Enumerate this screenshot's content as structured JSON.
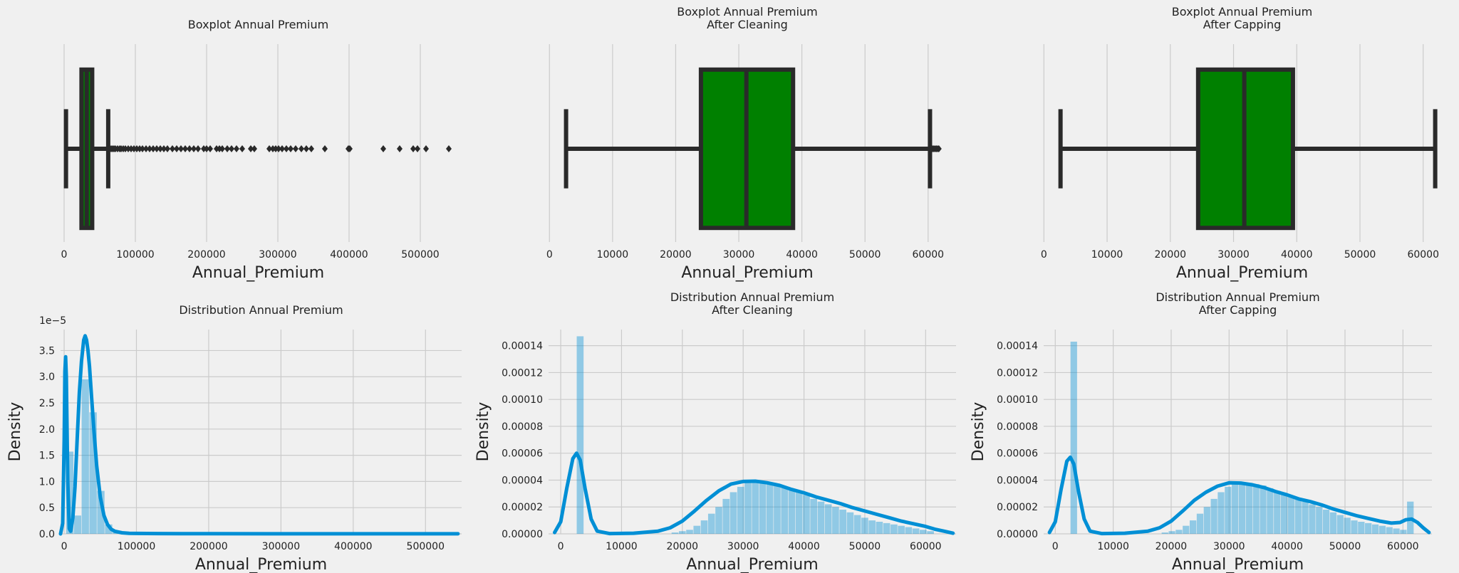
{
  "chart_data": [
    {
      "type": "boxplot",
      "title": "Boxplot Annual Premium",
      "xlabel": "Annual_Premium",
      "xlim": [
        -5000,
        550000
      ],
      "xticks": [
        0,
        100000,
        200000,
        300000,
        400000,
        500000
      ],
      "grid": "vertical",
      "color": "#008000",
      "box": {
        "whisker_low": 2630,
        "q1": 24400,
        "median": 31700,
        "q3": 39400,
        "whisker_high": 61900
      },
      "outliers": [
        62000,
        64000,
        66000,
        68000,
        70000,
        72000,
        75000,
        78000,
        80000,
        83000,
        86000,
        90000,
        94000,
        98000,
        102000,
        106000,
        110000,
        115000,
        120000,
        125000,
        130000,
        135000,
        140000,
        145000,
        152000,
        158000,
        164000,
        170000,
        176000,
        182000,
        188000,
        196000,
        200000,
        205000,
        214000,
        218000,
        222000,
        229000,
        235000,
        242000,
        250000,
        262000,
        267000,
        288000,
        293000,
        297000,
        301000,
        306000,
        312000,
        318000,
        325000,
        333000,
        340000,
        347000,
        366000,
        399000,
        401000,
        448000,
        471000,
        490000,
        496000,
        508000,
        540000
      ]
    },
    {
      "type": "boxplot",
      "title": "Boxplot Annual Premium\nAfter Cleaning",
      "xlabel": "Annual_Premium",
      "xlim": [
        -1500,
        64200
      ],
      "xticks": [
        0,
        10000,
        20000,
        30000,
        40000,
        50000,
        60000
      ],
      "grid": "vertical",
      "color": "#008000",
      "box": {
        "whisker_low": 2630,
        "q1": 24000,
        "median": 31200,
        "q3": 38600,
        "whisker_high": 60300
      },
      "outliers": [
        60500,
        60700,
        60900,
        61100,
        61300,
        61500,
        61700
      ]
    },
    {
      "type": "boxplot",
      "title": "Boxplot Annual Premium\nAfter Capping",
      "xlabel": "Annual_Premium",
      "xlim": [
        -1500,
        64200
      ],
      "xticks": [
        0,
        10000,
        20000,
        30000,
        40000,
        50000,
        60000
      ],
      "grid": "vertical",
      "color": "#008000",
      "box": {
        "whisker_low": 2630,
        "q1": 24400,
        "median": 31700,
        "q3": 39400,
        "whisker_high": 61900
      },
      "outliers": []
    },
    {
      "type": "histogram+kde",
      "title": "Distribution Annual Premium",
      "xlabel": "Annual_Premium",
      "ylabel": "Density",
      "xlim": [
        -5000,
        550000
      ],
      "ylim": [
        0,
        3.9e-05
      ],
      "xticks": [
        0,
        100000,
        200000,
        300000,
        400000,
        500000
      ],
      "yticks": [
        0,
        5e-06,
        1e-05,
        1.5e-05,
        2e-05,
        2.5e-05,
        3e-05,
        3.5e-05
      ],
      "ytick_labels": [
        "0.0",
        "0.5",
        "1.0",
        "1.5",
        "2.0",
        "2.5",
        "3.0",
        "3.5"
      ],
      "offset_text": "1e−5",
      "grid": "both",
      "color": "#008fd5",
      "bins": {
        "start": 2630,
        "width": 10763,
        "heights": [
          1.57e-05,
          3.5e-06,
          2.95e-05,
          2.32e-05,
          8.2e-06,
          1.8e-06,
          5e-07,
          2e-07,
          1e-07,
          5e-08,
          3e-08,
          2e-08,
          2e-08,
          1e-08,
          1e-08,
          1e-08,
          1e-08,
          1e-08,
          1e-08,
          1e-08,
          1e-08,
          1e-08,
          1e-08,
          1e-08,
          1e-08,
          1e-08,
          1e-08,
          1e-08,
          1e-08,
          1e-08,
          1e-08,
          1e-08,
          1e-08,
          1e-08,
          1e-08,
          1e-08,
          1e-08,
          1e-08,
          1e-08,
          1e-08,
          1e-08,
          1e-08,
          1e-08,
          1e-08,
          1e-08,
          1e-08,
          1e-08,
          1e-08,
          1e-08,
          1e-08
        ]
      },
      "kde": {
        "x": [
          -5000,
          -2000,
          0,
          1000,
          2000,
          3000,
          4000,
          5000,
          7000,
          9000,
          12000,
          15000,
          18000,
          21000,
          24000,
          27000,
          29000,
          31000,
          33000,
          35000,
          38000,
          41000,
          45000,
          50000,
          55000,
          60000,
          65000,
          70000,
          80000,
          90000,
          100000,
          130000,
          200000,
          300000,
          400000,
          545000
        ],
        "y": [
          0,
          2e-06,
          1.8e-05,
          3.1e-05,
          3.38e-05,
          3e-05,
          2e-05,
          1e-05,
          1e-06,
          5e-07,
          3e-06,
          9e-06,
          1.8e-05,
          2.7e-05,
          3.3e-05,
          3.7e-05,
          3.78e-05,
          3.7e-05,
          3.5e-05,
          3.2e-05,
          2.6e-05,
          2e-05,
          1.3e-05,
          7e-06,
          3.5e-06,
          1.8e-06,
          9e-07,
          5e-07,
          2e-07,
          1e-07,
          8e-08,
          5e-08,
          3e-08,
          2e-08,
          1e-08,
          1e-08
        ]
      }
    },
    {
      "type": "histogram+kde",
      "title": "Distribution Annual Premium\nAfter Cleaning",
      "xlabel": "Annual_Premium",
      "ylabel": "Density",
      "xlim": [
        -2000,
        65000
      ],
      "ylim": [
        0,
        0.000152
      ],
      "xticks": [
        0,
        10000,
        20000,
        30000,
        40000,
        50000,
        60000
      ],
      "yticks": [
        0,
        2e-05,
        4e-05,
        6e-05,
        8e-05,
        0.0001,
        0.00012,
        0.00014
      ],
      "ytick_labels": [
        "0.00000",
        "0.00002",
        "0.00004",
        "0.00006",
        "0.00008",
        "0.00010",
        "0.00012",
        "0.00014"
      ],
      "grid": "both",
      "color": "#008fd5",
      "bins": {
        "start": 2630,
        "width": 1200,
        "heights": [
          0.000147,
          0,
          0,
          0,
          0,
          0,
          0,
          0,
          0,
          0,
          0,
          0,
          0,
          1e-06,
          2e-06,
          3e-06,
          6e-06,
          1e-05,
          1.5e-05,
          2e-05,
          2.6e-05,
          3.1e-05,
          3.5e-05,
          3.8e-05,
          3.9e-05,
          3.9e-05,
          3.8e-05,
          3.7e-05,
          3.5e-05,
          3.3e-05,
          3.1e-05,
          2.9e-05,
          2.6e-05,
          2.4e-05,
          2.2e-05,
          2e-05,
          1.8e-05,
          1.6e-05,
          1.4e-05,
          1.2e-05,
          1e-05,
          9e-06,
          8e-06,
          7e-06,
          6e-06,
          5e-06,
          4e-06,
          3e-06,
          2e-06
        ]
      },
      "kde": {
        "x": [
          -1000,
          0,
          1000,
          2000,
          2600,
          3200,
          4000,
          5000,
          6000,
          8000,
          12000,
          16000,
          18000,
          20000,
          22000,
          24000,
          26000,
          28000,
          30000,
          32000,
          34000,
          36000,
          38000,
          40000,
          42000,
          44000,
          46000,
          48000,
          50000,
          52000,
          54000,
          56000,
          58000,
          60000,
          61500,
          63000,
          64500
        ],
        "y": [
          1e-06,
          9e-06,
          3.4e-05,
          5.6e-05,
          6e-05,
          5.5e-05,
          3.4e-05,
          1.1e-05,
          2e-06,
          2e-07,
          5e-07,
          2e-06,
          4.5e-06,
          9.5e-06,
          1.7e-05,
          2.5e-05,
          3.2e-05,
          3.7e-05,
          3.9e-05,
          3.92e-05,
          3.8e-05,
          3.6e-05,
          3.3e-05,
          3.05e-05,
          2.75e-05,
          2.5e-05,
          2.25e-05,
          1.95e-05,
          1.7e-05,
          1.45e-05,
          1.2e-05,
          9.5e-06,
          7.5e-06,
          5.5e-06,
          3.5e-06,
          2e-06,
          5e-07
        ]
      }
    },
    {
      "type": "histogram+kde",
      "title": "Distribution Annual Premium\nAfter Capping",
      "xlabel": "Annual_Premium",
      "ylabel": "Density",
      "xlim": [
        -2000,
        65000
      ],
      "ylim": [
        0,
        0.000152
      ],
      "xticks": [
        0,
        10000,
        20000,
        30000,
        40000,
        50000,
        60000
      ],
      "yticks": [
        0,
        2e-05,
        4e-05,
        6e-05,
        8e-05,
        0.0001,
        0.00012,
        0.00014
      ],
      "ytick_labels": [
        "0.00000",
        "0.00002",
        "0.00004",
        "0.00006",
        "0.00008",
        "0.00010",
        "0.00012",
        "0.00014"
      ],
      "grid": "both",
      "color": "#008fd5",
      "bins": {
        "start": 2630,
        "width": 1210,
        "heights": [
          0.000143,
          0,
          0,
          0,
          0,
          0,
          0,
          0,
          0,
          0,
          0,
          0,
          0,
          1e-06,
          2e-06,
          3e-06,
          6e-06,
          1e-05,
          1.5e-05,
          2e-05,
          2.6e-05,
          3.1e-05,
          3.5e-05,
          3.7e-05,
          3.8e-05,
          3.8e-05,
          3.7e-05,
          3.6e-05,
          3.4e-05,
          3.2e-05,
          3e-05,
          2.8e-05,
          2.6e-05,
          2.4e-05,
          2.2e-05,
          2e-05,
          1.8e-05,
          1.6e-05,
          1.4e-05,
          1.2e-05,
          1e-05,
          9e-06,
          8e-06,
          7e-06,
          6e-06,
          5e-06,
          4e-06,
          3e-06,
          2.4e-05
        ]
      },
      "kde": {
        "x": [
          -1000,
          0,
          1000,
          2000,
          2600,
          3200,
          4000,
          5000,
          6000,
          8000,
          12000,
          16000,
          18000,
          20000,
          22000,
          24000,
          26000,
          28000,
          30000,
          32000,
          34000,
          36000,
          38000,
          40000,
          42000,
          44000,
          46000,
          48000,
          50000,
          52000,
          54000,
          56000,
          58000,
          59500,
          60500,
          61500,
          62500,
          63500,
          64500
        ],
        "y": [
          1e-06,
          9e-06,
          3.3e-05,
          5.4e-05,
          5.7e-05,
          5.2e-05,
          3.2e-05,
          1.1e-05,
          2e-06,
          2e-07,
          5e-07,
          2e-06,
          4.5e-06,
          9.5e-06,
          1.7e-05,
          2.5e-05,
          3.1e-05,
          3.55e-05,
          3.8e-05,
          3.78e-05,
          3.65e-05,
          3.45e-05,
          3.15e-05,
          2.9e-05,
          2.6e-05,
          2.4e-05,
          2.15e-05,
          1.85e-05,
          1.6e-05,
          1.35e-05,
          1.15e-05,
          9.5e-06,
          8e-06,
          8.5e-06,
          1.05e-05,
          1.1e-05,
          8.5e-06,
          4.5e-06,
          1e-06
        ]
      }
    }
  ]
}
